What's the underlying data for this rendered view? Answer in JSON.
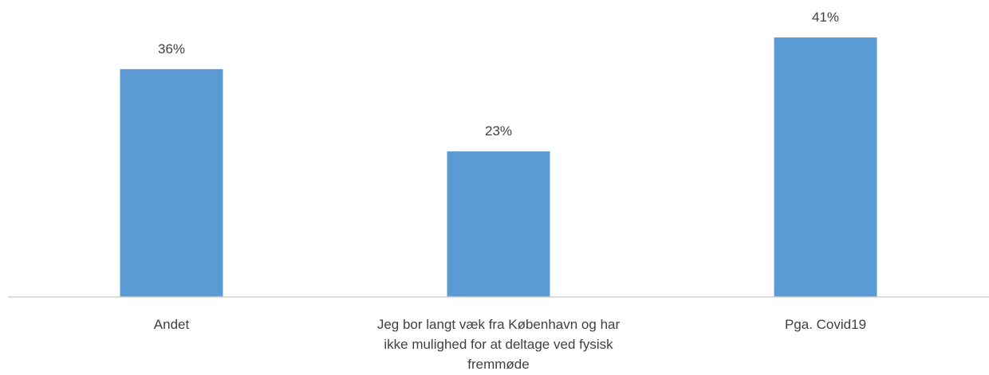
{
  "chart_data": {
    "type": "bar",
    "categories": [
      "Andet",
      "Jeg bor langt væk fra København og har ikke mulighed for at deltage ved fysisk fremmøde",
      "Pga. Covid19"
    ],
    "category_label_lines": [
      [
        "Andet"
      ],
      [
        "Jeg bor langt væk fra København og har",
        "ikke mulighed for at deltage ved fysisk",
        "fremmøde"
      ],
      [
        "Pga. Covid19"
      ]
    ],
    "values": [
      36,
      23,
      41
    ],
    "data_labels": [
      "36%",
      "23%",
      "41%"
    ],
    "unit": "%",
    "ylim": [
      0,
      45
    ],
    "grid": false,
    "legend": "none",
    "colors": {
      "bar": "#5b9bd5",
      "axis": "#d0d0d0",
      "text": "#404040"
    }
  }
}
